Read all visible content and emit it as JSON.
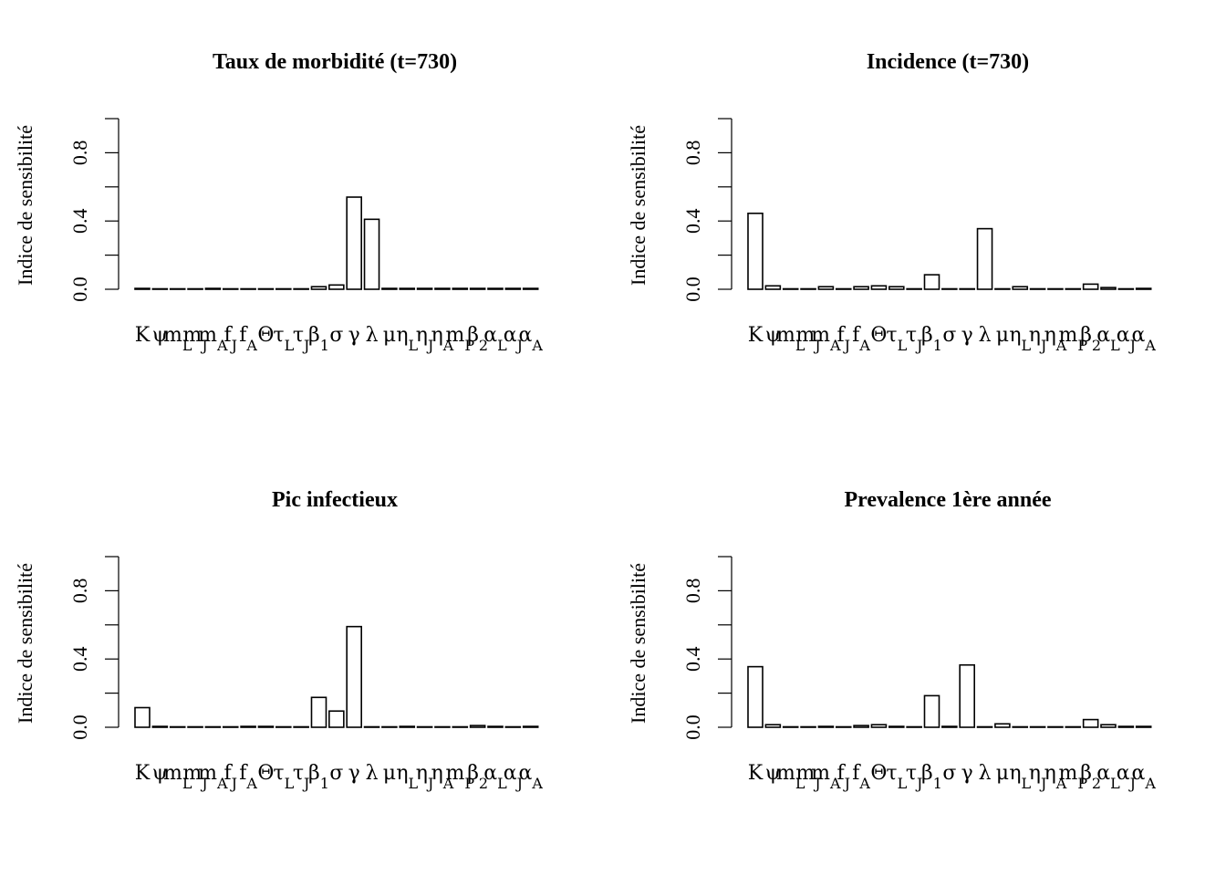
{
  "figure": {
    "background": "#ffffff",
    "bar_fill": "#ffffff",
    "stroke": "#000000"
  },
  "chart_data": [
    {
      "type": "bar",
      "title": "Taux de morbidité (t=730)",
      "ylabel": "Indice de sensibilité",
      "ylim": [
        0,
        1
      ],
      "yticks": [
        0,
        0.2,
        0.4,
        0.6,
        0.8,
        1.0
      ],
      "ytick_labels": [
        "0.0",
        "",
        "0.4",
        "",
        "0.8",
        ""
      ],
      "categories": [
        "K",
        "ψ",
        "m",
        "m",
        "m",
        "f",
        "f",
        "Θ",
        "τ",
        "τ",
        "β",
        "σ",
        "γ",
        "λ",
        "μ",
        "η",
        "η",
        "η",
        "m",
        "β",
        "α",
        "α",
        "α"
      ],
      "category_subscripts": [
        "",
        "",
        "L",
        "J",
        "A",
        "J",
        "A",
        "",
        "L",
        "J",
        "1",
        "",
        "",
        "",
        "",
        "L",
        "J",
        "A",
        "P",
        "2",
        "L",
        "J",
        "A"
      ],
      "values": [
        0.005,
        0,
        0,
        0,
        0.005,
        0,
        0,
        0,
        0,
        0,
        0.015,
        0.025,
        0.54,
        0.41,
        0.005,
        0.005,
        0.005,
        0.005,
        0.005,
        0.005,
        0.005,
        0.005,
        0.005
      ]
    },
    {
      "type": "bar",
      "title": "Incidence (t=730)",
      "ylabel": "Indice de sensibilité",
      "ylim": [
        0,
        1
      ],
      "yticks": [
        0,
        0.2,
        0.4,
        0.6,
        0.8,
        1.0
      ],
      "ytick_labels": [
        "0.0",
        "",
        "0.4",
        "",
        "0.8",
        ""
      ],
      "categories": [
        "K",
        "ψ",
        "m",
        "m",
        "m",
        "f",
        "f",
        "Θ",
        "τ",
        "τ",
        "β",
        "σ",
        "γ",
        "λ",
        "μ",
        "η",
        "η",
        "η",
        "m",
        "β",
        "α",
        "α",
        "α"
      ],
      "category_subscripts": [
        "",
        "",
        "L",
        "J",
        "A",
        "J",
        "A",
        "",
        "L",
        "J",
        "1",
        "",
        "",
        "",
        "",
        "L",
        "J",
        "A",
        "P",
        "2",
        "L",
        "J",
        "A"
      ],
      "values": [
        0.445,
        0.02,
        0,
        0,
        0.015,
        0,
        0.015,
        0.02,
        0.015,
        0,
        0.085,
        0,
        0,
        0.355,
        0,
        0.015,
        0,
        0,
        0,
        0.03,
        0.01,
        0,
        0.005
      ]
    },
    {
      "type": "bar",
      "title": "Pic infectieux",
      "ylabel": "Indice de sensibilité",
      "ylim": [
        0,
        1
      ],
      "yticks": [
        0,
        0.2,
        0.4,
        0.6,
        0.8,
        1.0
      ],
      "ytick_labels": [
        "0.0",
        "",
        "0.4",
        "",
        "0.8",
        ""
      ],
      "categories": [
        "K",
        "ψ",
        "m",
        "m",
        "m",
        "f",
        "f",
        "Θ",
        "τ",
        "τ",
        "β",
        "σ",
        "γ",
        "λ",
        "μ",
        "η",
        "η",
        "η",
        "m",
        "β",
        "α",
        "α",
        "α"
      ],
      "category_subscripts": [
        "",
        "",
        "L",
        "J",
        "A",
        "J",
        "A",
        "",
        "L",
        "J",
        "1",
        "",
        "",
        "",
        "",
        "L",
        "J",
        "A",
        "P",
        "2",
        "L",
        "J",
        "A"
      ],
      "values": [
        0.115,
        0.005,
        0,
        0,
        0,
        0,
        0.005,
        0.005,
        0,
        0,
        0.175,
        0.095,
        0.59,
        0,
        0,
        0.005,
        0,
        0,
        0,
        0.01,
        0.005,
        0,
        0.005
      ]
    },
    {
      "type": "bar",
      "title": "Prevalence 1ère année",
      "ylabel": "Indice de sensibilité",
      "ylim": [
        0,
        1
      ],
      "yticks": [
        0,
        0.2,
        0.4,
        0.6,
        0.8,
        1.0
      ],
      "ytick_labels": [
        "0.0",
        "",
        "0.4",
        "",
        "0.8",
        ""
      ],
      "categories": [
        "K",
        "ψ",
        "m",
        "m",
        "m",
        "f",
        "f",
        "Θ",
        "τ",
        "τ",
        "β",
        "σ",
        "γ",
        "λ",
        "μ",
        "η",
        "η",
        "η",
        "m",
        "β",
        "α",
        "α",
        "α"
      ],
      "category_subscripts": [
        "",
        "",
        "L",
        "J",
        "A",
        "J",
        "A",
        "",
        "L",
        "J",
        "1",
        "",
        "",
        "",
        "",
        "L",
        "J",
        "A",
        "P",
        "2",
        "L",
        "J",
        "A"
      ],
      "values": [
        0.355,
        0.015,
        0,
        0,
        0.005,
        0,
        0.01,
        0.015,
        0.005,
        0,
        0.185,
        0.005,
        0.365,
        0,
        0.02,
        0,
        0,
        0,
        0,
        0.045,
        0.015,
        0.005,
        0.005
      ]
    }
  ]
}
